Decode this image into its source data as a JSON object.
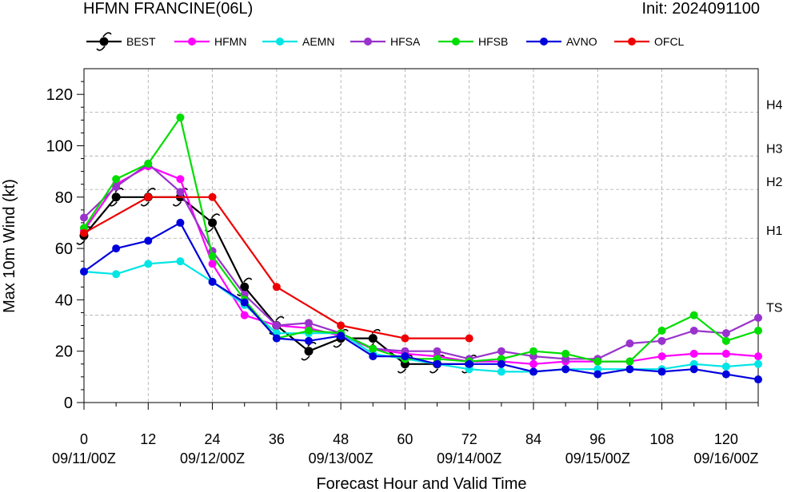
{
  "title_left": "HFMN FRANCINE(06L)",
  "title_right": "Init: 2024091100",
  "chart_data": {
    "type": "line",
    "xlabel": "Forecast Hour and Valid Time",
    "ylabel": "Max 10m Wind (kt)",
    "xlim": [
      0,
      126
    ],
    "ylim": [
      0,
      130
    ],
    "x_ticks": [
      0,
      12,
      24,
      36,
      48,
      60,
      72,
      84,
      96,
      108,
      120
    ],
    "y_ticks": [
      0,
      20,
      40,
      60,
      80,
      100,
      120
    ],
    "date_labels": [
      {
        "x": 0,
        "label": "09/11/00Z"
      },
      {
        "x": 24,
        "label": "09/12/00Z"
      },
      {
        "x": 48,
        "label": "09/13/00Z"
      },
      {
        "x": 72,
        "label": "09/14/00Z"
      },
      {
        "x": 96,
        "label": "09/15/00Z"
      },
      {
        "x": 120,
        "label": "09/16/00Z"
      }
    ],
    "thresholds": [
      {
        "label": "TS",
        "value": 34
      },
      {
        "label": "H1",
        "value": 64
      },
      {
        "label": "H2",
        "value": 83
      },
      {
        "label": "H3",
        "value": 96
      },
      {
        "label": "H4",
        "value": 113
      }
    ],
    "series": [
      {
        "name": "BEST",
        "color": "#000000",
        "marker": "hurricane-symbol",
        "points": [
          [
            0,
            65
          ],
          [
            6,
            80
          ],
          [
            12,
            80
          ],
          [
            18,
            80
          ],
          [
            24,
            70
          ],
          [
            30,
            45
          ],
          [
            36,
            30
          ],
          [
            42,
            20
          ],
          [
            48,
            25
          ],
          [
            54,
            25
          ],
          [
            60,
            15
          ],
          [
            66,
            15
          ],
          [
            72,
            15
          ]
        ]
      },
      {
        "name": "HFMN",
        "color": "#ff00ff",
        "points": [
          [
            0,
            67
          ],
          [
            6,
            85
          ],
          [
            12,
            92
          ],
          [
            18,
            87
          ],
          [
            24,
            54
          ],
          [
            30,
            34
          ],
          [
            36,
            30
          ],
          [
            42,
            29
          ],
          [
            48,
            26
          ],
          [
            54,
            21
          ],
          [
            60,
            19
          ],
          [
            66,
            18
          ],
          [
            72,
            16
          ],
          [
            78,
            16
          ],
          [
            84,
            15
          ],
          [
            90,
            16
          ],
          [
            96,
            16
          ],
          [
            102,
            16
          ],
          [
            108,
            18
          ],
          [
            114,
            19
          ],
          [
            120,
            19
          ],
          [
            126,
            18
          ]
        ]
      },
      {
        "name": "AEMN",
        "color": "#00e5e5",
        "points": [
          [
            0,
            51
          ],
          [
            6,
            50
          ],
          [
            12,
            54
          ],
          [
            18,
            55
          ],
          [
            24,
            47
          ],
          [
            30,
            38
          ],
          [
            36,
            27
          ],
          [
            42,
            27
          ],
          [
            48,
            27
          ],
          [
            54,
            19
          ],
          [
            60,
            17
          ],
          [
            66,
            15
          ],
          [
            72,
            13
          ],
          [
            78,
            12
          ],
          [
            84,
            12
          ],
          [
            90,
            13
          ],
          [
            96,
            13
          ],
          [
            102,
            13
          ],
          [
            108,
            13
          ],
          [
            114,
            15
          ],
          [
            120,
            14
          ],
          [
            126,
            15
          ]
        ]
      },
      {
        "name": "HFSA",
        "color": "#9933cc",
        "points": [
          [
            0,
            72
          ],
          [
            6,
            84
          ],
          [
            12,
            93
          ],
          [
            18,
            82
          ],
          [
            24,
            59
          ],
          [
            30,
            42
          ],
          [
            36,
            30
          ],
          [
            42,
            31
          ],
          [
            48,
            27
          ],
          [
            54,
            21
          ],
          [
            60,
            20
          ],
          [
            66,
            20
          ],
          [
            72,
            17
          ],
          [
            78,
            20
          ],
          [
            84,
            18
          ],
          [
            90,
            17
          ],
          [
            96,
            17
          ],
          [
            102,
            23
          ],
          [
            108,
            24
          ],
          [
            114,
            28
          ],
          [
            120,
            27
          ],
          [
            126,
            33
          ]
        ]
      },
      {
        "name": "HFSB",
        "color": "#00dd00",
        "points": [
          [
            0,
            68
          ],
          [
            6,
            87
          ],
          [
            12,
            93
          ],
          [
            18,
            111
          ],
          [
            24,
            57
          ],
          [
            30,
            40
          ],
          [
            36,
            25
          ],
          [
            42,
            28
          ],
          [
            48,
            27
          ],
          [
            54,
            21
          ],
          [
            60,
            17
          ],
          [
            66,
            17
          ],
          [
            72,
            16
          ],
          [
            78,
            17
          ],
          [
            84,
            20
          ],
          [
            90,
            19
          ],
          [
            96,
            16
          ],
          [
            102,
            16
          ],
          [
            108,
            28
          ],
          [
            114,
            34
          ],
          [
            120,
            24
          ],
          [
            126,
            28
          ]
        ]
      },
      {
        "name": "AVNO",
        "color": "#0000dd",
        "points": [
          [
            0,
            51
          ],
          [
            6,
            60
          ],
          [
            12,
            63
          ],
          [
            18,
            70
          ],
          [
            24,
            47
          ],
          [
            30,
            39
          ],
          [
            36,
            25
          ],
          [
            42,
            24
          ],
          [
            48,
            26
          ],
          [
            54,
            18
          ],
          [
            60,
            18
          ],
          [
            66,
            15
          ],
          [
            72,
            15
          ],
          [
            78,
            15
          ],
          [
            84,
            12
          ],
          [
            90,
            13
          ],
          [
            96,
            11
          ],
          [
            102,
            13
          ],
          [
            108,
            12
          ],
          [
            114,
            13
          ],
          [
            120,
            11
          ],
          [
            126,
            9
          ]
        ]
      },
      {
        "name": "OFCL",
        "color": "#ee0000",
        "points": [
          [
            0,
            66
          ],
          [
            12,
            80
          ],
          [
            24,
            80
          ],
          [
            36,
            45
          ],
          [
            48,
            30
          ],
          [
            60,
            25
          ],
          [
            72,
            25
          ]
        ]
      }
    ]
  }
}
